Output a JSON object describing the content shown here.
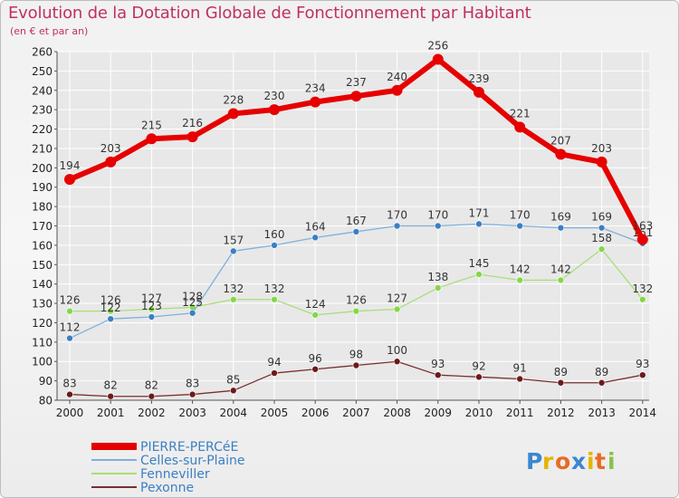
{
  "colors": {
    "title": "#c0315f",
    "grid": "#ffffff",
    "tick_text": "#222222",
    "label_text": "#333333"
  },
  "brand": {
    "name": "Proxiti"
  },
  "chart_data": {
    "type": "line",
    "title": "Evolution de la Dotation Globale de Fonctionnement par Habitant",
    "subtitle": "(en € et par an)",
    "xlabel": "",
    "ylabel": "",
    "ylim": [
      80,
      260
    ],
    "ytick_step": 10,
    "grid": true,
    "legend_position": "bottom-left",
    "x": [
      "2000",
      "2001",
      "2002",
      "2003",
      "2004",
      "2005",
      "2006",
      "2007",
      "2008",
      "2009",
      "2010",
      "2011",
      "2012",
      "2013",
      "2014"
    ],
    "series": [
      {
        "name": "PIERRE-PERCéE",
        "color": "#e60000",
        "line_width": 6,
        "marker_r": 6,
        "marker_color": "#e60000",
        "values": [
          194,
          203,
          215,
          216,
          228,
          230,
          234,
          237,
          240,
          256,
          239,
          221,
          207,
          203,
          163
        ],
        "labels": [
          "194",
          "203",
          "215",
          "216",
          "228",
          "230",
          "234",
          "237",
          "240",
          "256",
          "239",
          "221",
          "207",
          "203",
          "163"
        ]
      },
      {
        "name": "Celles-sur-Plaine",
        "color": "#7fb0dc",
        "line_width": 1.3,
        "marker_r": 3.5,
        "marker_color": "#3b7fc4",
        "values": [
          112,
          122,
          123,
          125,
          157,
          160,
          164,
          167,
          170,
          170,
          171,
          170,
          169,
          169,
          161
        ],
        "labels": [
          "112",
          "122",
          "123",
          "125",
          "157",
          "160",
          "164",
          "167",
          "170",
          "170",
          "171",
          "170",
          "169",
          "169",
          "161"
        ]
      },
      {
        "name": "Fenneviller",
        "color": "#a9de78",
        "line_width": 1.3,
        "marker_r": 3.5,
        "marker_color": "#86d64a",
        "values": [
          126,
          126,
          127,
          128,
          132,
          132,
          124,
          126,
          127,
          138,
          145,
          142,
          142,
          158,
          132
        ],
        "labels": [
          "126",
          "126",
          "127",
          "128",
          "132",
          "132",
          "124",
          "126",
          "127",
          "138",
          "145",
          "142",
          "142",
          "158",
          "132"
        ]
      },
      {
        "name": "Pexonne",
        "color": "#7a2e2e",
        "line_width": 1.3,
        "marker_r": 3.5,
        "marker_color": "#6b1a1a",
        "values": [
          83,
          82,
          82,
          83,
          85,
          94,
          96,
          98,
          100,
          93,
          92,
          91,
          89,
          89,
          93
        ],
        "labels": [
          "83",
          "82",
          "82",
          "83",
          "85",
          "94",
          "96",
          "98",
          "100",
          "93",
          "92",
          "91",
          "89",
          "89",
          "93"
        ]
      }
    ]
  }
}
